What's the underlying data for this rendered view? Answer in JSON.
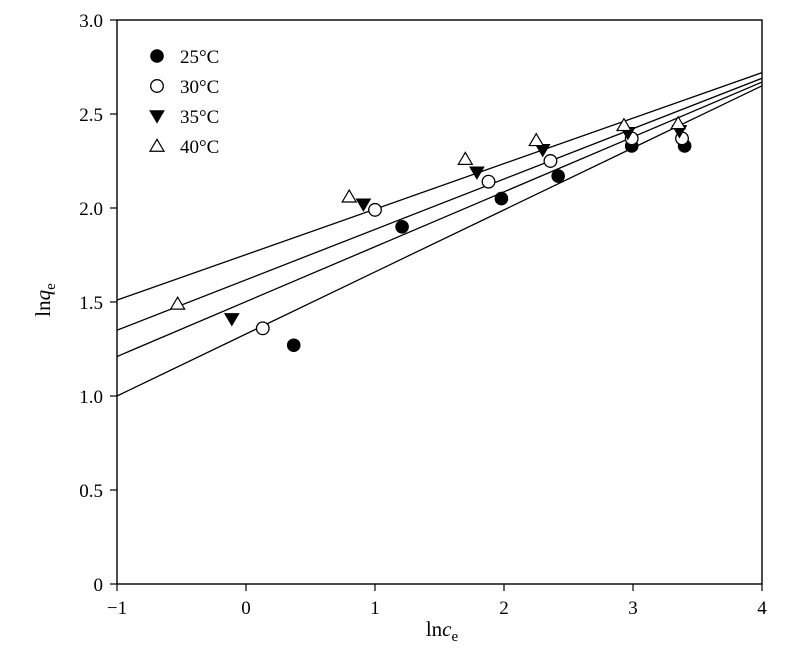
{
  "chart_data": {
    "type": "scatter",
    "xlabel": {
      "main": "ln",
      "italic": "c",
      "sub": "e"
    },
    "ylabel": {
      "main": "ln",
      "italic": "q",
      "sub": "e"
    },
    "xlim": [
      -1,
      4
    ],
    "ylim": [
      0,
      3.0
    ],
    "x_ticks": [
      -1,
      0,
      1,
      2,
      3,
      4
    ],
    "x_tick_labels": [
      "−1",
      "0",
      "1",
      "2",
      "3",
      "4"
    ],
    "y_ticks": [
      0,
      0.5,
      1.0,
      1.5,
      2.0,
      2.5,
      3.0
    ],
    "y_tick_labels": [
      "0",
      "0.5",
      "1.0",
      "1.5",
      "2.0",
      "2.5",
      "3.0"
    ],
    "grid": false,
    "legend_position": "top-left",
    "series": [
      {
        "name": "25°C",
        "marker": "filled-circle",
        "points": [
          [
            0.37,
            1.27
          ],
          [
            1.21,
            1.9
          ],
          [
            1.98,
            2.05
          ],
          [
            2.42,
            2.17
          ],
          [
            2.99,
            2.33
          ],
          [
            3.4,
            2.33
          ]
        ],
        "fit_line": [
          [
            -1,
            1.0
          ],
          [
            4,
            2.65
          ]
        ]
      },
      {
        "name": "30°C",
        "marker": "open-circle",
        "points": [
          [
            0.13,
            1.36
          ],
          [
            1.0,
            1.99
          ],
          [
            1.88,
            2.14
          ],
          [
            2.36,
            2.25
          ],
          [
            2.99,
            2.37
          ],
          [
            3.38,
            2.37
          ]
        ],
        "fit_line": [
          [
            -1,
            1.21
          ],
          [
            4,
            2.67
          ]
        ]
      },
      {
        "name": "35°C",
        "marker": "filled-triangle-down",
        "points": [
          [
            -0.11,
            1.41
          ],
          [
            0.91,
            2.02
          ],
          [
            1.79,
            2.19
          ],
          [
            2.3,
            2.31
          ],
          [
            2.96,
            2.4
          ],
          [
            3.36,
            2.41
          ]
        ],
        "fit_line": [
          [
            -1,
            1.35
          ],
          [
            4,
            2.69
          ]
        ]
      },
      {
        "name": "40°C",
        "marker": "open-triangle-up",
        "points": [
          [
            -0.53,
            1.49
          ],
          [
            0.8,
            2.06
          ],
          [
            1.7,
            2.26
          ],
          [
            2.25,
            2.36
          ],
          [
            2.93,
            2.44
          ],
          [
            3.35,
            2.45
          ]
        ],
        "fit_line": [
          [
            -1,
            1.51
          ],
          [
            4,
            2.72
          ]
        ]
      }
    ]
  }
}
